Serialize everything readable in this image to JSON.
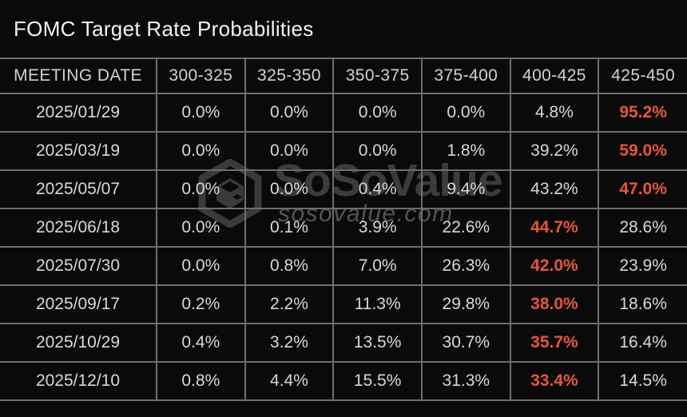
{
  "title": "FOMC Target Rate Probabilities",
  "watermark": {
    "brand": "SoSoValue",
    "domain": "sosovalue.com"
  },
  "colors": {
    "background": "#0a0a0a",
    "grid_border": "#6e6e6e",
    "text": "#d8d8d8",
    "highlight": "#e8543a",
    "watermark_brand": "#3c3c3c",
    "watermark_domain": "#545454"
  },
  "chart_data": {
    "type": "table",
    "title": "FOMC Target Rate Probabilities",
    "columns": [
      "MEETING DATE",
      "300-325",
      "325-350",
      "350-375",
      "375-400",
      "400-425",
      "425-450"
    ],
    "rows": [
      {
        "date": "2025/01/29",
        "values": [
          "0.0%",
          "0.0%",
          "0.0%",
          "0.0%",
          "4.8%",
          "95.2%"
        ],
        "highlight_index": 5
      },
      {
        "date": "2025/03/19",
        "values": [
          "0.0%",
          "0.0%",
          "0.0%",
          "1.8%",
          "39.2%",
          "59.0%"
        ],
        "highlight_index": 5
      },
      {
        "date": "2025/05/07",
        "values": [
          "0.0%",
          "0.0%",
          "0.4%",
          "9.4%",
          "43.2%",
          "47.0%"
        ],
        "highlight_index": 5
      },
      {
        "date": "2025/06/18",
        "values": [
          "0.0%",
          "0.1%",
          "3.9%",
          "22.6%",
          "44.7%",
          "28.6%"
        ],
        "highlight_index": 4
      },
      {
        "date": "2025/07/30",
        "values": [
          "0.0%",
          "0.8%",
          "7.0%",
          "26.3%",
          "42.0%",
          "23.9%"
        ],
        "highlight_index": 4
      },
      {
        "date": "2025/09/17",
        "values": [
          "0.2%",
          "2.2%",
          "11.3%",
          "29.8%",
          "38.0%",
          "18.6%"
        ],
        "highlight_index": 4
      },
      {
        "date": "2025/10/29",
        "values": [
          "0.4%",
          "3.2%",
          "13.5%",
          "30.7%",
          "35.7%",
          "16.4%"
        ],
        "highlight_index": 4
      },
      {
        "date": "2025/12/10",
        "values": [
          "0.8%",
          "4.4%",
          "15.5%",
          "31.3%",
          "33.4%",
          "14.5%"
        ],
        "highlight_index": 4
      }
    ]
  }
}
